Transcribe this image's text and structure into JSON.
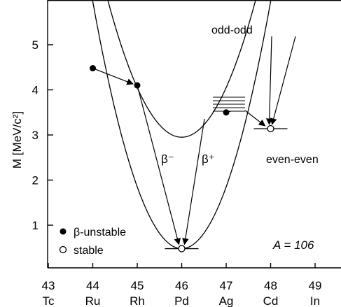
{
  "chart_data": {
    "type": "line",
    "ylabel": "M [MeV/c²]",
    "y_ticks": [
      "1",
      "2",
      "3",
      "4",
      "5"
    ],
    "ylim": [
      0.2,
      5.8
    ],
    "x_ticks": [
      {
        "z": "43",
        "element": "Tc"
      },
      {
        "z": "44",
        "element": "Ru"
      },
      {
        "z": "45",
        "element": "Rh"
      },
      {
        "z": "46",
        "element": "Pd"
      },
      {
        "z": "47",
        "element": "Ag"
      },
      {
        "z": "48",
        "element": "Cd"
      },
      {
        "z": "49",
        "element": "In"
      }
    ],
    "xlim": [
      42.6,
      49.3
    ],
    "series": [
      {
        "name": "odd-odd",
        "vertex": [
          46.0,
          2.95
        ],
        "curvature": 1.1
      },
      {
        "name": "even-even",
        "vertex": [
          46.0,
          0.48
        ],
        "curvature": 1.37
      }
    ],
    "points": [
      {
        "z": 44,
        "m": 4.48,
        "kind": "unstable"
      },
      {
        "z": 45,
        "m": 4.1,
        "kind": "unstable"
      },
      {
        "z": 47,
        "m": 3.5,
        "kind": "unstable"
      },
      {
        "z": 48,
        "m": 3.14,
        "kind": "stable"
      },
      {
        "z": 46,
        "m": 0.48,
        "kind": "stable"
      }
    ],
    "annotations": {
      "odd_odd": "odd-odd",
      "even_even": "even-even",
      "beta_minus": "β⁻",
      "beta_plus": "β⁺",
      "mass_number": "A = 106"
    },
    "legend": {
      "unstable": "β-unstable",
      "stable": "stable",
      "position": "bottom-left"
    }
  }
}
